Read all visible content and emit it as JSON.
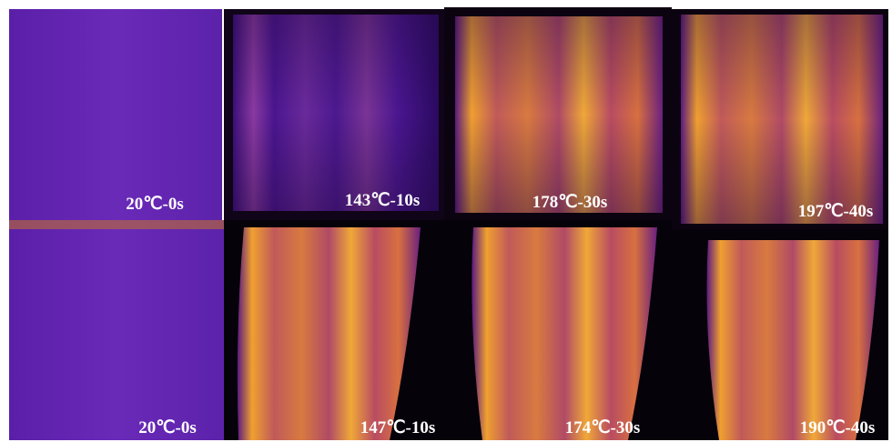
{
  "rows": [
    [
      "20℃-0s",
      "143℃-10s",
      "178℃-30s",
      "197℃-40s"
    ],
    [
      "20℃-0s",
      "147℃-10s",
      "174℃-30s",
      "190℃-40s"
    ]
  ]
}
